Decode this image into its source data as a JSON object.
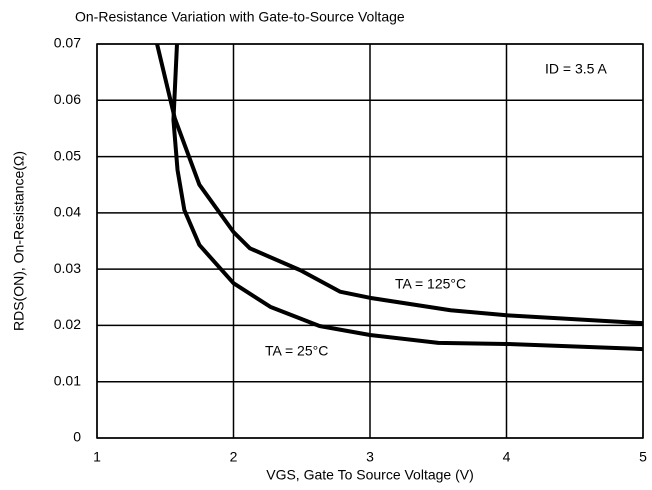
{
  "chart_data": {
    "type": "line",
    "title": "On-Resistance Variation with Gate-to-Source Voltage",
    "x_label": "VGS, Gate To Source Voltage (V)",
    "y_label": "RDS(ON), On-Resistance(Ω)",
    "annotation": "ID = 3.5 A",
    "xlim": [
      1,
      5
    ],
    "xticks": [
      1,
      2,
      3,
      4,
      5
    ],
    "ylim": [
      0,
      0.07
    ],
    "yticks": [
      0,
      0.01,
      0.02,
      0.03,
      0.04,
      0.05,
      0.06,
      0.07
    ],
    "grid": true,
    "series": [
      {
        "name": "TA = 125°C",
        "color": "#000000",
        "x": [
          1.44,
          1.57,
          1.75,
          2.0,
          2.12,
          2.49,
          2.78,
          3.0,
          3.59,
          4.0,
          5.0
        ],
        "values": [
          0.07,
          0.0568,
          0.045,
          0.0366,
          0.0337,
          0.0298,
          0.026,
          0.0249,
          0.0227,
          0.0218,
          0.0204
        ]
      },
      {
        "name": "TA = 25°C",
        "color": "#000000",
        "x": [
          1.586,
          1.56,
          1.59,
          1.64,
          1.75,
          1.86,
          2.0,
          2.27,
          2.63,
          3.0,
          3.5,
          4.0,
          5.0
        ],
        "values": [
          0.07,
          0.0565,
          0.0476,
          0.0405,
          0.0343,
          0.0313,
          0.0275,
          0.0233,
          0.0199,
          0.0183,
          0.0169,
          0.0167,
          0.0158
        ]
      }
    ]
  }
}
